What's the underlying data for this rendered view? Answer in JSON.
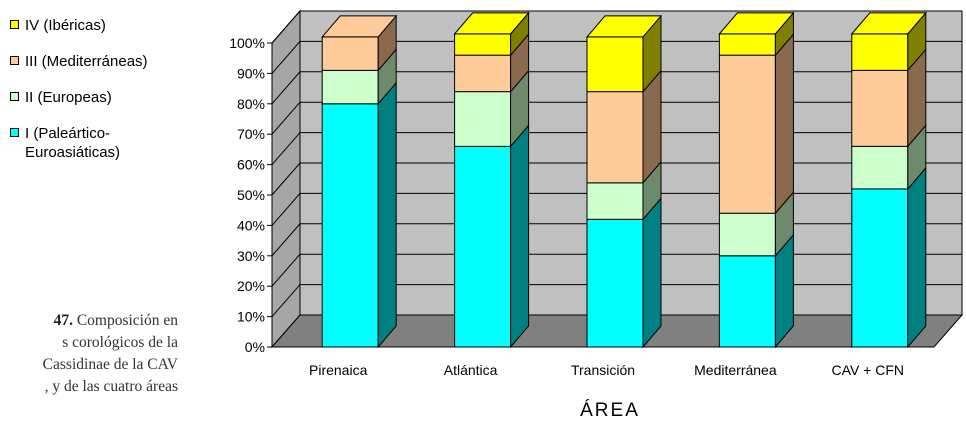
{
  "legend": {
    "items": [
      {
        "label": "IV (Ibéricas)",
        "color": "#ffff00"
      },
      {
        "label": "III (Mediterráneas)",
        "color": "#ffcc99"
      },
      {
        "label": "II (Europeas)",
        "color": "#ccffcc"
      },
      {
        "label": "I (Paleártico-Euroasiáticas)",
        "color": "#00ffff"
      }
    ]
  },
  "caption": {
    "figure_number": "47.",
    "text": "Composición en\ns corológicos de la\nCassidinae de la CAV\n, y de las cuatro áreas"
  },
  "chart_data": {
    "type": "bar",
    "stacked": true,
    "three_d": true,
    "categories": [
      "Pirenaica",
      "Atlántica",
      "Transición",
      "Mediterránea",
      "CAV + CFN"
    ],
    "series": [
      {
        "name": "I (Paleártico-Euroasiáticas)",
        "color": "#00ffff",
        "side_color": "#008080",
        "values": [
          80,
          66,
          42,
          30,
          52
        ]
      },
      {
        "name": "II (Europeas)",
        "color": "#ccffcc",
        "side_color": "#6d8a6d",
        "values": [
          11,
          18,
          12,
          14,
          14
        ]
      },
      {
        "name": "III (Mediterráneas)",
        "color": "#ffcc99",
        "side_color": "#8a6a4e",
        "values": [
          11,
          12,
          30,
          52,
          25
        ]
      },
      {
        "name": "IV (Ibéricas)",
        "color": "#ffff00",
        "side_color": "#808000",
        "values": [
          0,
          7,
          18,
          7,
          12
        ]
      }
    ],
    "xlabel": "ÁREA",
    "ylabel": "",
    "ylim": [
      0,
      100
    ],
    "yticks": [
      "0%",
      "10%",
      "20%",
      "30%",
      "40%",
      "50%",
      "60%",
      "70%",
      "80%",
      "90%",
      "100%"
    ],
    "grid": true,
    "legend_position": "left"
  }
}
